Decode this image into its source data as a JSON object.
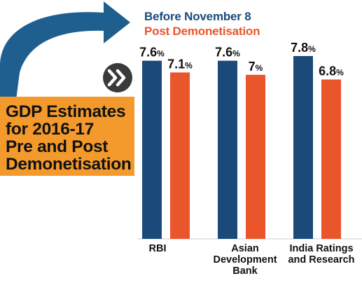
{
  "colors": {
    "before": "#1b4a7a",
    "post": "#ea552c",
    "arrow": "#1f5f8f",
    "title_box": "#f49a2c",
    "badge": "#3a3a3a",
    "text": "#111111"
  },
  "title": {
    "lines": [
      "GDP Estimates",
      "for 2016-17",
      "Pre and Post",
      "Demonetisation"
    ]
  },
  "decor": {
    "arrow_icon": "curved-arrow-icon",
    "badge_icon": "double-chevron-right-icon"
  },
  "chart_data": {
    "type": "bar",
    "categories": [
      "RBI",
      "Asian Development Bank",
      "India Ratings and Research"
    ],
    "category_label_lines": [
      [
        "RBI"
      ],
      [
        "Asian",
        "Development",
        "Bank"
      ],
      [
        "India Ratings",
        "and Research"
      ]
    ],
    "series": [
      {
        "name": "Before November 8",
        "values": [
          7.6,
          7.6,
          7.8
        ],
        "labels": [
          "7.6",
          "7.6",
          "7.8"
        ]
      },
      {
        "name": "Post Demonetisation",
        "values": [
          7.1,
          7,
          6.8
        ],
        "labels": [
          "7.1",
          "7",
          "6.8"
        ]
      }
    ],
    "value_suffix": "%",
    "legend_position": "top",
    "grid": false,
    "ylim": [
      0,
      7.8
    ]
  }
}
